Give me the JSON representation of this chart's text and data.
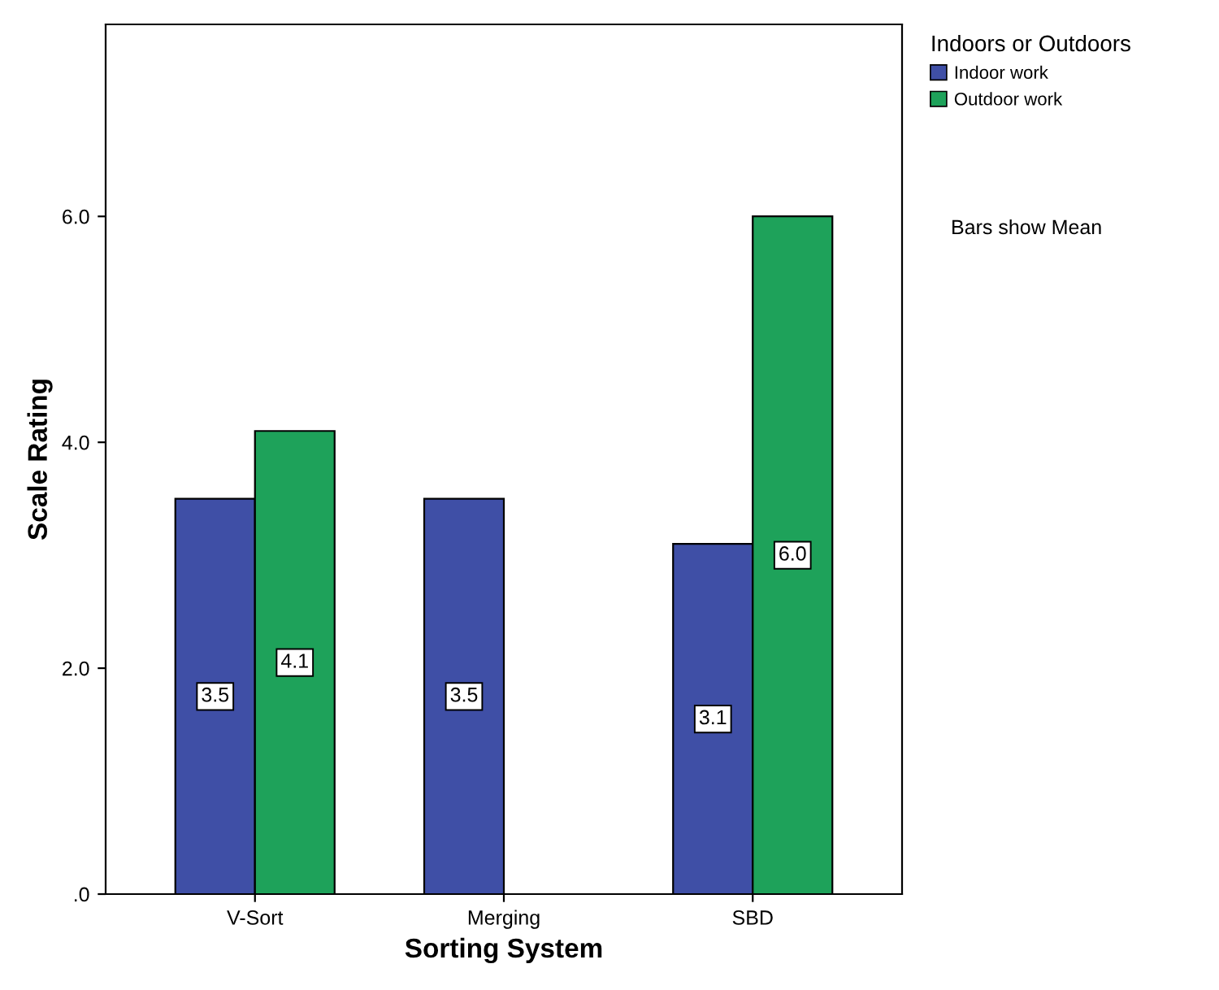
{
  "chart_data": {
    "type": "bar",
    "xlabel": "Sorting System",
    "ylabel": "Scale Rating",
    "categories": [
      "V-Sort",
      "Merging",
      "SBD"
    ],
    "series": [
      {
        "name": "Indoor work",
        "color": "#3f4fa6",
        "values": [
          3.5,
          3.5,
          3.1
        ],
        "value_labels": [
          "3.5",
          "3.5",
          "3.1"
        ]
      },
      {
        "name": "Outdoor work",
        "color": "#1ea25a",
        "values": [
          4.1,
          null,
          6.0
        ],
        "value_labels": [
          "4.1",
          null,
          "6.0"
        ]
      }
    ],
    "ylim": [
      0,
      7.7
    ],
    "yticks": [
      {
        "value": 0,
        "label": ".0"
      },
      {
        "value": 2,
        "label": "2.0"
      },
      {
        "value": 4,
        "label": "4.0"
      },
      {
        "value": 6,
        "label": "6.0"
      }
    ],
    "legend_title": "Indoors or Outdoors",
    "legend": "top right",
    "grid": false,
    "annotations": [
      "Bars show Mean"
    ]
  }
}
